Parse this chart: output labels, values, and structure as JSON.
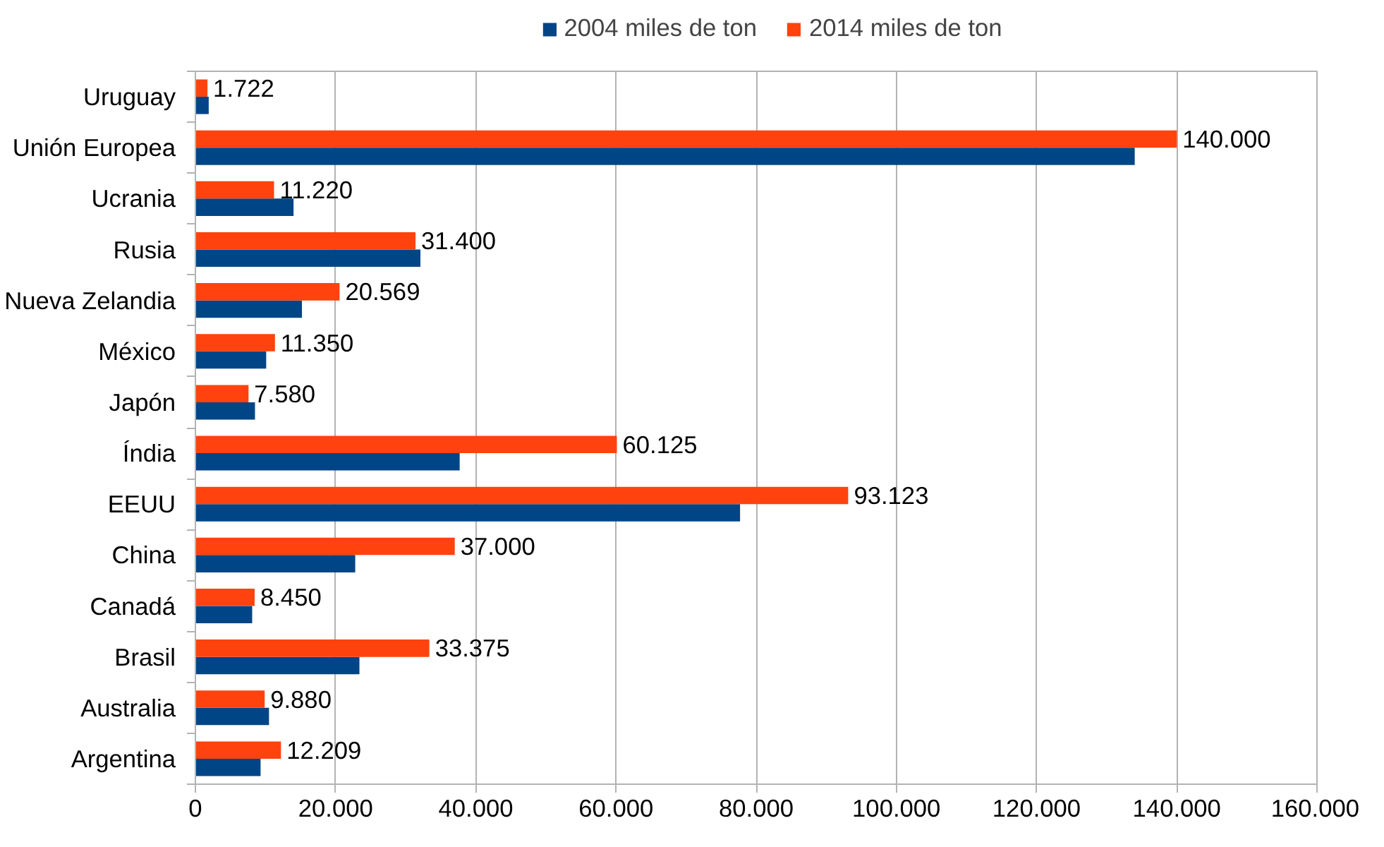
{
  "chart_data": {
    "type": "bar",
    "orientation": "horizontal",
    "categories": [
      "Uruguay",
      "Unión Europea",
      "Ucrania",
      "Rusia",
      "Nueva Zelandia",
      "México",
      "Japón",
      "Índia",
      "EEUU",
      "China",
      "Canadá",
      "Brasil",
      "Australia",
      "Argentina"
    ],
    "series": [
      {
        "name": "2004 miles de ton",
        "color": "#004586",
        "values": [
          1900,
          134000,
          14000,
          32100,
          15200,
          10100,
          8500,
          37700,
          77700,
          22800,
          8100,
          23400,
          10500,
          9300
        ]
      },
      {
        "name": "2014 miles de ton",
        "color": "#ff420e",
        "values": [
          1722,
          140000,
          11220,
          31400,
          20569,
          11350,
          7580,
          60125,
          93123,
          37000,
          8450,
          33375,
          9880,
          12209
        ],
        "value_labels": [
          "1.722",
          "140.000",
          "11.220",
          "31.400",
          "20.569",
          "11.350",
          "7.580",
          "60.125",
          "93.123",
          "37.000",
          "8.450",
          "33.375",
          "9.880",
          "12.209"
        ]
      }
    ],
    "xlim": [
      0,
      160000
    ],
    "xticks": [
      {
        "value": 0,
        "label": "0"
      },
      {
        "value": 20000,
        "label": "20.000"
      },
      {
        "value": 40000,
        "label": "40.000"
      },
      {
        "value": 60000,
        "label": "60.000"
      },
      {
        "value": 80000,
        "label": "80.000"
      },
      {
        "value": 100000,
        "label": "100.000"
      },
      {
        "value": 120000,
        "label": "120.000"
      },
      {
        "value": 140000,
        "label": "140.000"
      },
      {
        "value": 160000,
        "label": "160.000"
      }
    ],
    "grid": "x",
    "legend": "top"
  }
}
